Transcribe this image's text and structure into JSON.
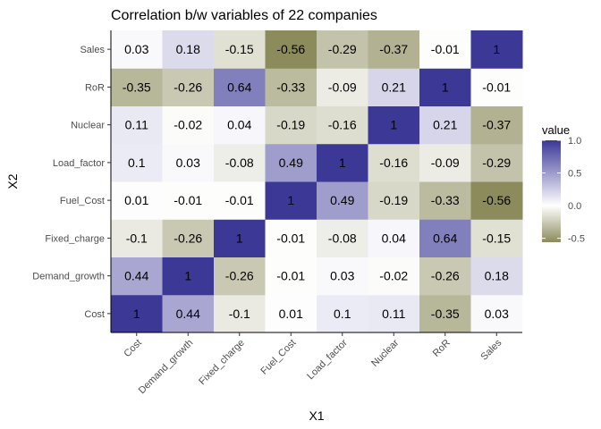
{
  "chart_data": {
    "type": "heatmap",
    "title": "Correlation b/w variables of 22 companies",
    "xlabel": "X1",
    "ylabel": "X2",
    "x_categories": [
      "Cost",
      "Demand_growth",
      "Fixed_charge",
      "Fuel_Cost",
      "Load_factor",
      "Nuclear",
      "RoR",
      "Sales"
    ],
    "y_categories": [
      "Cost",
      "Demand_growth",
      "Fixed_charge",
      "Fuel_Cost",
      "Load_factor",
      "Nuclear",
      "RoR",
      "Sales"
    ],
    "values": [
      [
        1,
        0.44,
        -0.1,
        0.01,
        0.1,
        0.11,
        -0.35,
        0.03
      ],
      [
        0.44,
        1,
        -0.26,
        -0.01,
        0.03,
        -0.02,
        -0.26,
        0.18
      ],
      [
        -0.1,
        -0.26,
        1,
        -0.01,
        -0.08,
        0.04,
        0.64,
        -0.15
      ],
      [
        0.01,
        -0.01,
        -0.01,
        1,
        0.49,
        -0.19,
        -0.33,
        -0.56
      ],
      [
        0.1,
        0.03,
        -0.08,
        0.49,
        1,
        -0.16,
        -0.09,
        -0.29
      ],
      [
        0.11,
        -0.02,
        0.04,
        -0.19,
        -0.16,
        1,
        0.21,
        -0.37
      ],
      [
        -0.35,
        -0.26,
        0.64,
        -0.33,
        -0.09,
        0.21,
        1,
        -0.01
      ],
      [
        0.03,
        0.18,
        -0.15,
        -0.56,
        -0.29,
        -0.37,
        -0.01,
        1
      ]
    ],
    "cell_labels": [
      [
        "1",
        "0.44",
        "-0.1",
        "0.01",
        "0.1",
        "0.11",
        "-0.35",
        "0.03"
      ],
      [
        "0.44",
        "1",
        "-0.26",
        "-0.01",
        "0.03",
        "-0.02",
        "-0.26",
        "0.18"
      ],
      [
        "-0.1",
        "-0.26",
        "1",
        "-0.01",
        "-0.08",
        "0.04",
        "0.64",
        "-0.15"
      ],
      [
        "0.01",
        "-0.01",
        "-0.01",
        "1",
        "0.49",
        "-0.19",
        "-0.33",
        "-0.56"
      ],
      [
        "0.1",
        "0.03",
        "-0.08",
        "0.49",
        "1",
        "-0.16",
        "-0.09",
        "-0.29"
      ],
      [
        "0.11",
        "-0.02",
        "0.04",
        "-0.19",
        "-0.16",
        "1",
        "0.21",
        "-0.37"
      ],
      [
        "-0.35",
        "-0.26",
        "0.64",
        "-0.33",
        "-0.09",
        "0.21",
        "1",
        "-0.01"
      ],
      [
        "0.03",
        "0.18",
        "-0.15",
        "-0.56",
        "-0.29",
        "-0.37",
        "-0.01",
        "1"
      ]
    ],
    "legend": {
      "title": "value",
      "placement": "right",
      "range": [
        -0.56,
        1
      ],
      "ticks": [
        -0.5,
        0.0,
        0.5,
        1.0
      ],
      "tick_labels": [
        "-0.5",
        "0.0",
        "0.5",
        "1.0"
      ]
    },
    "colors": {
      "low": "#8b8b5c",
      "mid": "#ffffff",
      "high": "#3b3896"
    },
    "grid": false
  }
}
